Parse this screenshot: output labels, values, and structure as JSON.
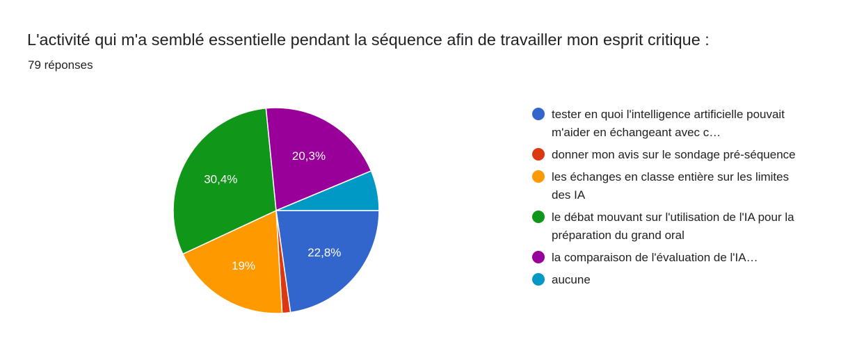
{
  "header": {
    "title": "L'activité qui m'a semblé essentielle pendant la séquence afin de travailler mon esprit critique :",
    "responses": "79 réponses"
  },
  "chart_data": {
    "type": "pie",
    "start_angle_deg": 90,
    "direction": "clockwise",
    "slices": [
      {
        "label": "tester en quoi l'intelligence artificielle pouvait m'aider en échangeant avec c…",
        "value": 22.8,
        "display": "22,8%",
        "color": "#3366cc"
      },
      {
        "label": "donner mon avis sur le sondage pré-séquence",
        "value": 1.3,
        "display": "",
        "color": "#dc3912"
      },
      {
        "label": "les échanges en classe entière sur les limites des IA",
        "value": 19.0,
        "display": "19%",
        "color": "#ff9900"
      },
      {
        "label": "le débat mouvant sur l'utilisation de l'IA pour la préparation du grand oral",
        "value": 30.4,
        "display": "30,4%",
        "color": "#109618"
      },
      {
        "label": "la comparaison de l'évaluation de l'IA…",
        "value": 20.3,
        "display": "20,3%",
        "color": "#990099"
      },
      {
        "label": "aucune",
        "value": 6.3,
        "display": "",
        "color": "#0099c6"
      }
    ]
  }
}
